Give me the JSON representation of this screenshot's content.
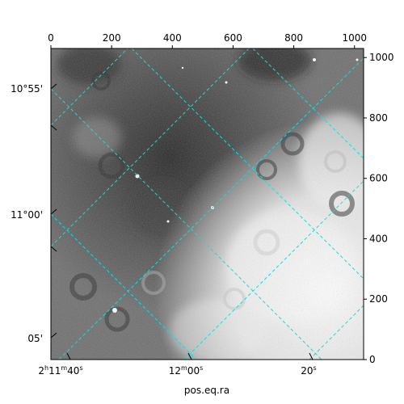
{
  "chart_data": {
    "type": "image",
    "colormap": "gray",
    "image_extent": {
      "x": [
        0,
        1030
      ],
      "y": [
        0,
        1030
      ]
    },
    "top_axis": {
      "ticks": [
        0,
        200,
        400,
        600,
        800,
        1000
      ]
    },
    "right_axis": {
      "ticks": [
        0,
        200,
        400,
        600,
        800,
        1000
      ]
    },
    "bottom_axis": {
      "label": "pos.eq.ra",
      "tick_labels": [
        {
          "base": "2",
          "unit1": "h",
          "mid": "11",
          "unit2": "m",
          "num": "40",
          "unit3": "s"
        },
        {
          "base": "12",
          "unit1": "m",
          "mid": "00",
          "unit2": "s"
        },
        {
          "base": "20",
          "unit1": "s"
        }
      ]
    },
    "left_axis": {
      "tick_labels": [
        "10°55'",
        "11°00'",
        "05'"
      ]
    },
    "grid": {
      "on": true,
      "color": "#00e5e5",
      "style": "dashed"
    }
  }
}
